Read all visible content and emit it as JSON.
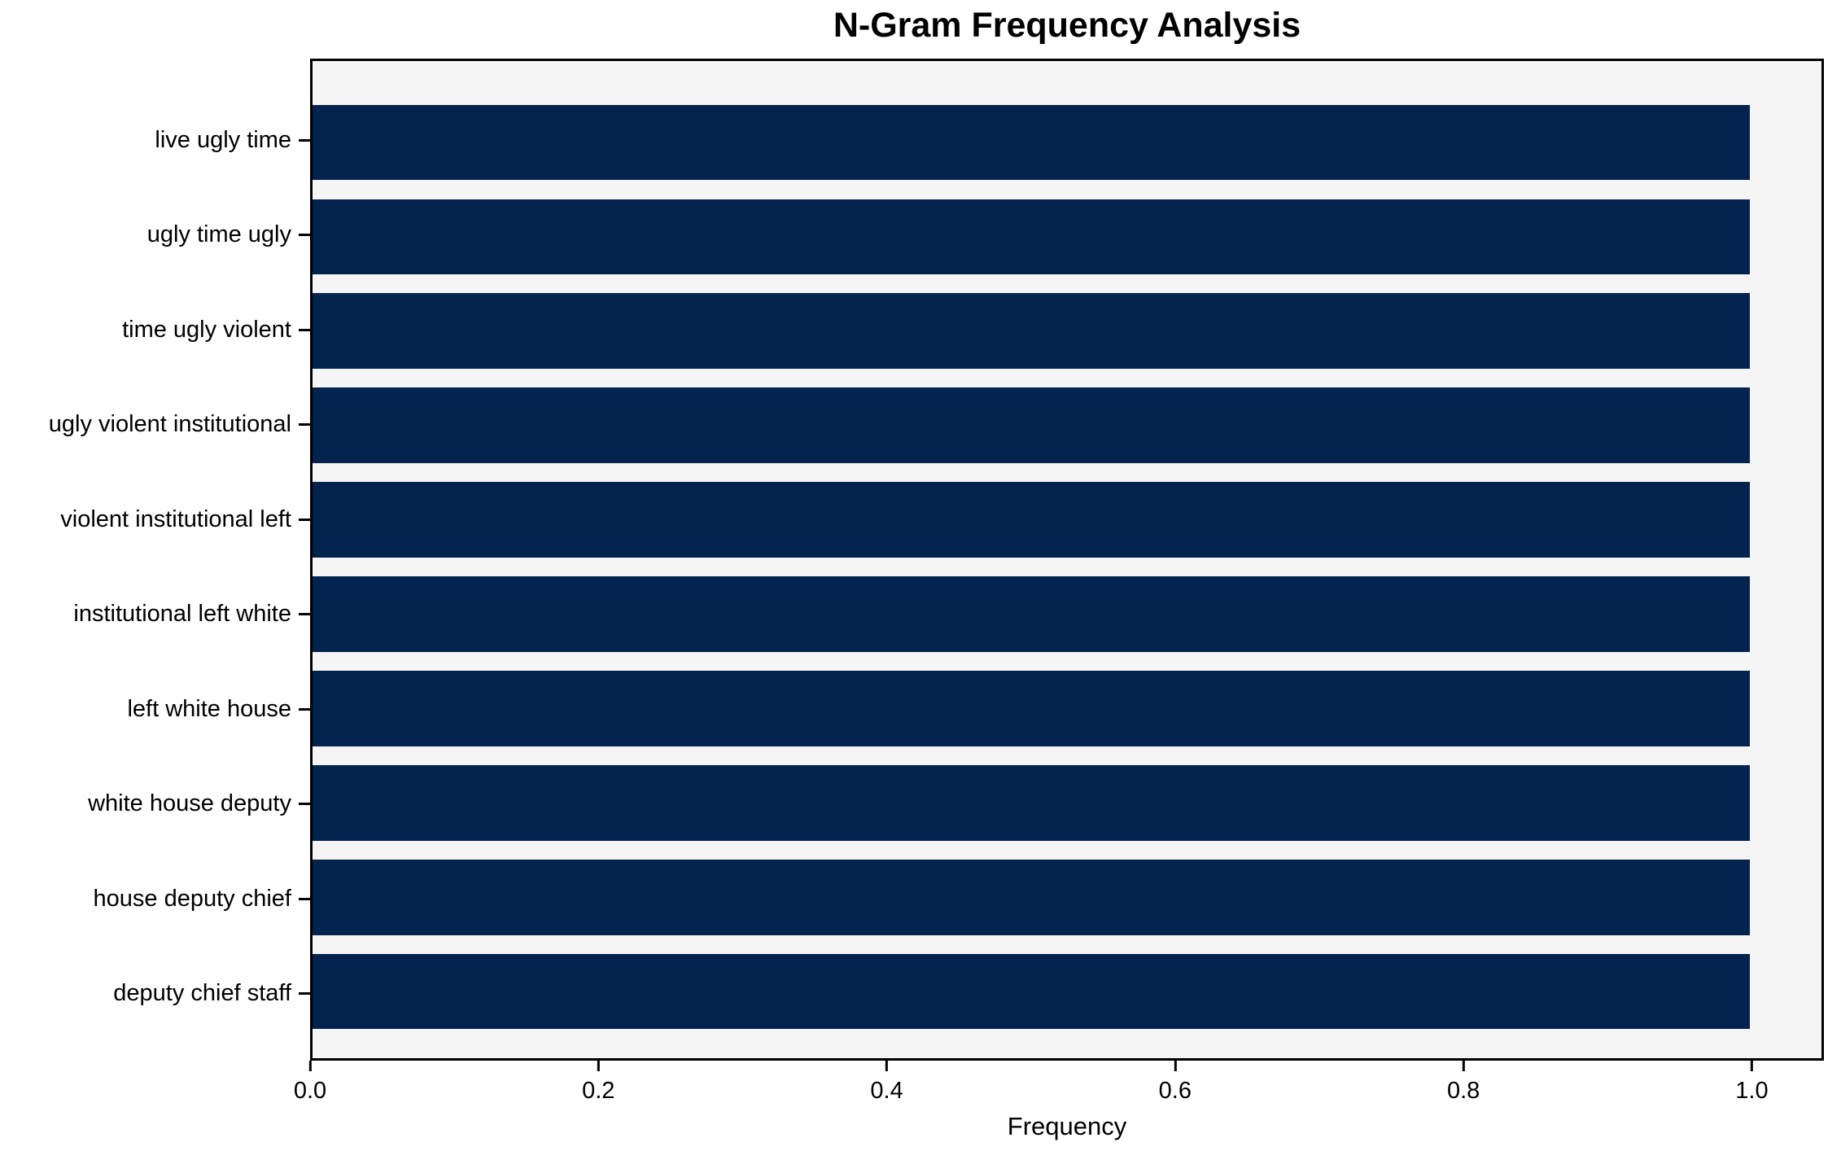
{
  "colors": {
    "bar": "#01234e",
    "plot_background": "#f5f5f6",
    "figure_background": "#ffffff",
    "spine": "#000000",
    "text": "#000000"
  },
  "chart_data": {
    "type": "bar",
    "orientation": "horizontal",
    "title": "N-Gram Frequency Analysis",
    "xlabel": "Frequency",
    "ylabel": "",
    "categories": [
      "live ugly time",
      "ugly time ugly",
      "time ugly violent",
      "ugly violent institutional",
      "violent institutional left",
      "institutional left white",
      "left white house",
      "white house deputy",
      "house deputy chief",
      "deputy chief staff"
    ],
    "values": [
      1.0,
      1.0,
      1.0,
      1.0,
      1.0,
      1.0,
      1.0,
      1.0,
      1.0,
      1.0
    ],
    "xlim": [
      0.0,
      1.05
    ],
    "xtick_labels": [
      "0.0",
      "0.2",
      "0.4",
      "0.6",
      "0.8",
      "1.0"
    ],
    "xtick_values": [
      0.0,
      0.2,
      0.4,
      0.6,
      0.8,
      1.0
    ],
    "grid": false,
    "legend_position": "none",
    "bar_height_fraction": 0.8
  }
}
